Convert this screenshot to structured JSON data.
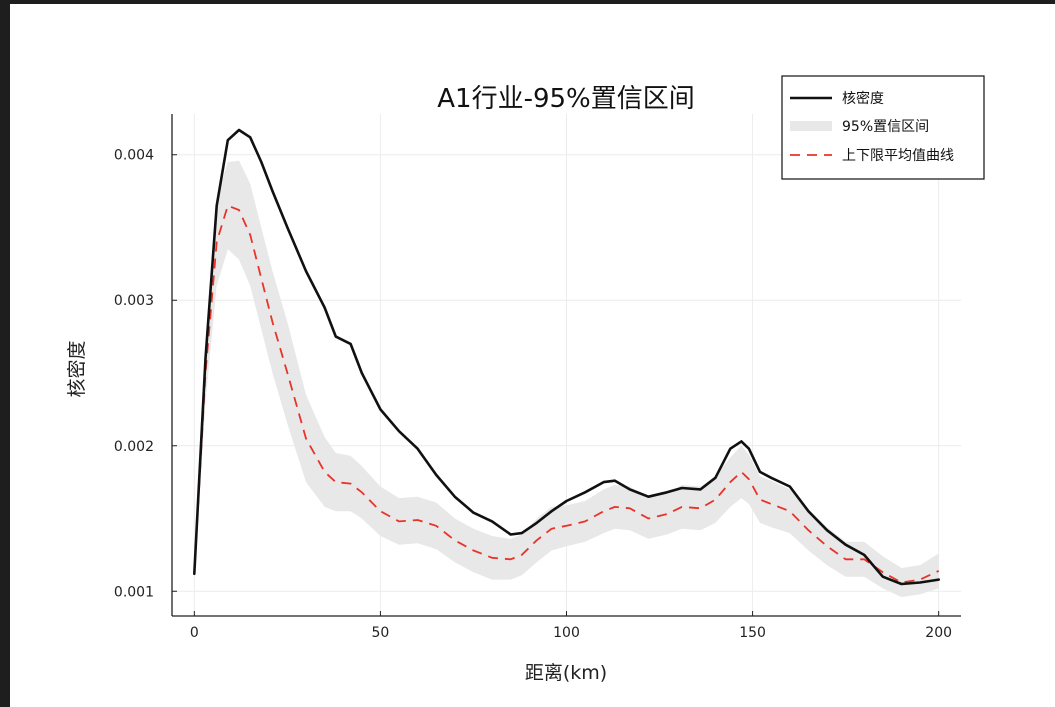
{
  "chart_data": {
    "type": "line",
    "title": "A1行业-95%置信区间",
    "xlabel": "距离(km)",
    "ylabel": "核密度",
    "xlim": [
      -6,
      206
    ],
    "ylim": [
      0.00083,
      0.00428
    ],
    "xticks": [
      0,
      50,
      100,
      150,
      200
    ],
    "xtick_labels": [
      "0",
      "50",
      "100",
      "150",
      "200"
    ],
    "yticks": [
      0.001,
      0.002,
      0.003,
      0.004
    ],
    "ytick_labels": [
      "0.001",
      "0.002",
      "0.003",
      "0.004"
    ],
    "grid": true,
    "legend_position": "top-right",
    "legend": [
      {
        "label": "核密度",
        "style": "solid",
        "color": "#111111"
      },
      {
        "label": "95%置信区间",
        "style": "band",
        "color": "#e8e8e8"
      },
      {
        "label": "上下限平均值曲线",
        "style": "dashed",
        "color": "#e8332a"
      }
    ],
    "x": [
      0,
      3,
      6,
      9,
      12,
      15,
      18,
      21,
      25,
      30,
      35,
      38,
      42,
      45,
      50,
      55,
      60,
      65,
      70,
      75,
      80,
      85,
      88,
      92,
      96,
      100,
      105,
      110,
      113,
      117,
      122,
      127,
      131,
      136,
      140,
      144,
      147,
      149,
      152,
      155,
      160,
      165,
      170,
      175,
      180,
      185,
      190,
      195,
      200
    ],
    "series": [
      {
        "name": "核密度",
        "values": [
          0.00112,
          0.0026,
          0.00365,
          0.0041,
          0.00417,
          0.00412,
          0.00395,
          0.00375,
          0.0035,
          0.0032,
          0.00295,
          0.00275,
          0.0027,
          0.0025,
          0.00225,
          0.0021,
          0.00198,
          0.0018,
          0.00165,
          0.00154,
          0.00148,
          0.00139,
          0.0014,
          0.00147,
          0.00155,
          0.00162,
          0.00168,
          0.00175,
          0.00176,
          0.0017,
          0.00165,
          0.00168,
          0.00171,
          0.0017,
          0.00178,
          0.00198,
          0.00203,
          0.00198,
          0.00182,
          0.00178,
          0.00172,
          0.00155,
          0.00142,
          0.00132,
          0.00125,
          0.0011,
          0.00105,
          0.00106,
          0.00108
        ]
      },
      {
        "name": "上下限平均值曲线",
        "values": [
          0.00112,
          0.0025,
          0.0034,
          0.00365,
          0.00362,
          0.00345,
          0.00315,
          0.00285,
          0.0025,
          0.00205,
          0.00182,
          0.00175,
          0.00174,
          0.00168,
          0.00155,
          0.00148,
          0.00149,
          0.00145,
          0.00135,
          0.00128,
          0.00123,
          0.00122,
          0.00125,
          0.00135,
          0.00143,
          0.00145,
          0.00148,
          0.00155,
          0.00158,
          0.00157,
          0.0015,
          0.00153,
          0.00158,
          0.00157,
          0.00163,
          0.00175,
          0.00182,
          0.00177,
          0.00163,
          0.0016,
          0.00155,
          0.00142,
          0.00131,
          0.00122,
          0.00122,
          0.00113,
          0.00106,
          0.00108,
          0.00114
        ]
      }
    ],
    "band": {
      "name": "95%置信区间",
      "lower": [
        0.00108,
        0.0023,
        0.0031,
        0.00335,
        0.00328,
        0.0031,
        0.0028,
        0.0025,
        0.00215,
        0.00175,
        0.00158,
        0.00155,
        0.00155,
        0.0015,
        0.00138,
        0.00132,
        0.00133,
        0.00129,
        0.0012,
        0.00113,
        0.00108,
        0.00108,
        0.00111,
        0.0012,
        0.00128,
        0.00131,
        0.00134,
        0.0014,
        0.00143,
        0.00142,
        0.00136,
        0.00139,
        0.00143,
        0.00142,
        0.00147,
        0.00158,
        0.00164,
        0.0016,
        0.00147,
        0.00144,
        0.0014,
        0.00128,
        0.00118,
        0.0011,
        0.0011,
        0.00102,
        0.00096,
        0.00098,
        0.00102
      ],
      "upper": [
        0.00116,
        0.0027,
        0.0037,
        0.00395,
        0.00396,
        0.0038,
        0.0035,
        0.0032,
        0.00285,
        0.00235,
        0.00206,
        0.00195,
        0.00193,
        0.00186,
        0.00172,
        0.00164,
        0.00165,
        0.00161,
        0.0015,
        0.00143,
        0.00138,
        0.00136,
        0.00139,
        0.0015,
        0.00158,
        0.00159,
        0.00162,
        0.0017,
        0.00173,
        0.00172,
        0.00164,
        0.00167,
        0.00173,
        0.00172,
        0.00179,
        0.00192,
        0.002,
        0.00194,
        0.00179,
        0.00176,
        0.0017,
        0.00156,
        0.00144,
        0.00134,
        0.00134,
        0.00124,
        0.00116,
        0.00118,
        0.00126
      ]
    }
  }
}
